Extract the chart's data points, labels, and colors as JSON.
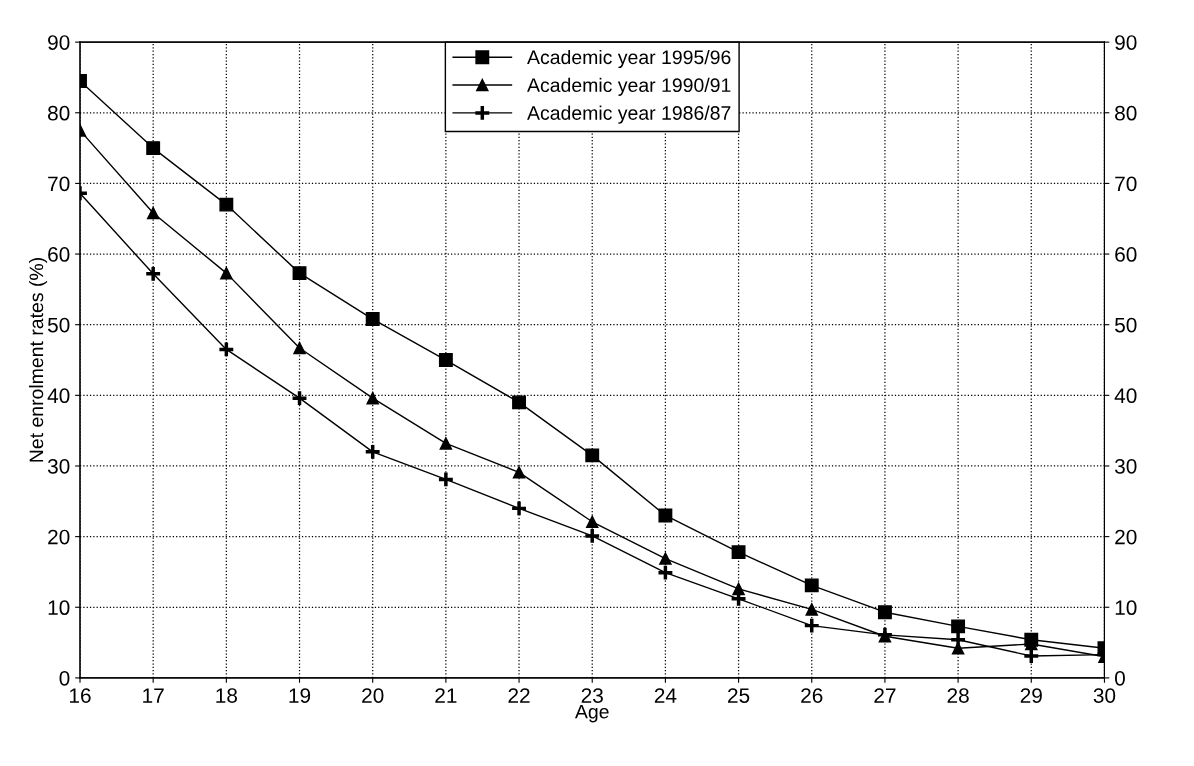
{
  "chart_data": {
    "type": "line",
    "xlabel": "Age",
    "ylabel": "Net enrolment rates (%)",
    "x": [
      16,
      17,
      18,
      19,
      20,
      21,
      22,
      23,
      24,
      25,
      26,
      27,
      28,
      29,
      30
    ],
    "series": [
      {
        "name": "Academic year 1995/96",
        "color": "#000000",
        "marker": "square",
        "values": [
          84.5,
          75,
          67,
          57.3,
          50.8,
          45,
          39,
          31.5,
          23,
          17.8,
          13.1,
          9.3,
          7.3,
          5.4,
          4.2
        ]
      },
      {
        "name": "Academic year 1990/91",
        "color": "#000000",
        "marker": "triangle",
        "values": [
          77.5,
          65.8,
          57.3,
          46.7,
          39.6,
          33.2,
          29.1,
          22.1,
          16.9,
          12.6,
          9.7,
          5.9,
          4.2,
          4.8,
          3.0
        ]
      },
      {
        "name": "Academic year 1986/87",
        "color": "#000000",
        "marker": "cross",
        "values": [
          68.6,
          57.2,
          46.5,
          39.6,
          32.0,
          28.1,
          24.0,
          20.1,
          14.9,
          11.2,
          7.4,
          6.1,
          5.4,
          3.1,
          3.3
        ]
      }
    ],
    "xlim": [
      16,
      30
    ],
    "xticks": [
      16,
      17,
      18,
      19,
      20,
      21,
      22,
      23,
      24,
      25,
      26,
      27,
      28,
      29,
      30
    ],
    "ylim": [
      0,
      90
    ],
    "yticks": [
      0,
      10,
      20,
      30,
      40,
      50,
      60,
      70,
      80,
      90
    ],
    "y2lim": [
      0,
      90
    ],
    "y2ticks": [
      0,
      10,
      20,
      30,
      40,
      50,
      60,
      70,
      80,
      90
    ],
    "grid": true,
    "legend": "top",
    "line_style": "solid"
  }
}
